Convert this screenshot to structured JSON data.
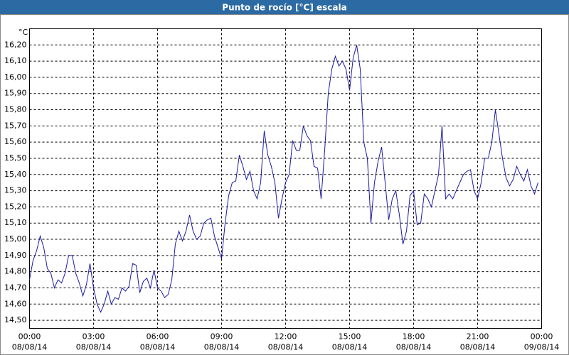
{
  "chart_data": {
    "type": "line",
    "title": "Punto de rocío [°C] escala",
    "y_unit": "°C",
    "x": [
      0,
      10,
      20,
      30,
      40,
      50,
      60,
      70,
      80,
      90,
      100,
      110,
      120,
      130,
      140,
      150,
      160,
      170,
      180,
      190,
      200,
      210,
      220,
      230,
      240,
      250,
      260,
      270,
      280,
      290,
      300,
      310,
      320,
      330,
      340,
      350,
      360,
      370,
      380,
      390,
      400,
      410,
      420,
      430,
      440,
      450,
      460,
      470,
      480,
      490,
      500,
      510,
      520,
      530,
      540,
      550,
      560,
      570,
      580,
      590,
      600,
      610,
      620,
      630,
      640,
      650,
      660,
      670,
      680,
      690,
      700,
      710,
      720,
      730,
      740,
      750,
      760,
      770,
      780,
      790,
      800,
      810,
      820,
      830,
      840,
      850,
      860,
      870,
      880,
      890,
      900,
      910,
      920,
      930,
      940,
      950,
      960,
      970,
      980,
      990,
      1000,
      1010,
      1020,
      1030,
      1040,
      1050,
      1060,
      1070,
      1080,
      1090,
      1100,
      1110,
      1120,
      1130,
      1140,
      1150,
      1160,
      1170,
      1180,
      1190,
      1200,
      1210,
      1220,
      1230,
      1240,
      1250,
      1260,
      1270,
      1280,
      1290,
      1300,
      1310,
      1320,
      1330,
      1340,
      1350,
      1360,
      1370,
      1380,
      1390,
      1400,
      1410,
      1420,
      1430
    ],
    "series": [
      {
        "name": "Punto de rocío",
        "color": "#1a1aa6",
        "values": [
          14.75,
          14.87,
          14.93,
          15.02,
          14.95,
          14.82,
          14.79,
          14.7,
          14.75,
          14.73,
          14.79,
          14.9,
          14.9,
          14.79,
          14.73,
          14.65,
          14.72,
          14.85,
          14.7,
          14.6,
          14.55,
          14.6,
          14.68,
          14.6,
          14.64,
          14.63,
          14.7,
          14.68,
          14.71,
          14.85,
          14.84,
          14.67,
          14.74,
          14.76,
          14.7,
          14.81,
          14.7,
          14.68,
          14.64,
          14.66,
          14.75,
          14.97,
          15.05,
          14.99,
          15.05,
          15.15,
          15.05,
          15.0,
          15.02,
          15.1,
          15.12,
          15.13,
          15.02,
          14.95,
          14.88,
          15.1,
          15.27,
          15.35,
          15.36,
          15.52,
          15.45,
          15.37,
          15.42,
          15.3,
          15.25,
          15.35,
          15.67,
          15.52,
          15.45,
          15.35,
          15.13,
          15.25,
          15.35,
          15.4,
          15.61,
          15.55,
          15.55,
          15.7,
          15.64,
          15.61,
          15.45,
          15.44,
          15.25,
          15.55,
          15.9,
          16.05,
          16.13,
          16.07,
          16.1,
          16.05,
          15.92,
          16.12,
          16.2,
          16.05,
          15.6,
          15.5,
          15.1,
          15.35,
          15.48,
          15.57,
          15.35,
          15.12,
          15.25,
          15.3,
          15.15,
          14.97,
          15.05,
          15.27,
          15.3,
          15.09,
          15.1,
          15.28,
          15.25,
          15.2,
          15.3,
          15.4,
          15.7,
          15.25,
          15.28,
          15.25,
          15.3,
          15.35,
          15.4,
          15.42,
          15.43,
          15.3,
          15.25,
          15.35,
          15.5,
          15.5,
          15.6,
          15.8,
          15.65,
          15.5,
          15.38,
          15.33,
          15.37,
          15.45,
          15.4,
          15.36,
          15.43,
          15.33,
          15.28,
          15.35
        ]
      }
    ],
    "xlim": [
      0,
      1440
    ],
    "xticks": [
      {
        "value": 0,
        "label": "00:00"
      },
      {
        "value": 180,
        "label": "03:00"
      },
      {
        "value": 360,
        "label": "06:00"
      },
      {
        "value": 540,
        "label": "09:00"
      },
      {
        "value": 720,
        "label": "12:00"
      },
      {
        "value": 900,
        "label": "15:00"
      },
      {
        "value": 1080,
        "label": "18:00"
      },
      {
        "value": 1260,
        "label": "21:00"
      },
      {
        "value": 1440,
        "label": "00:00"
      }
    ],
    "xtick_dates": [
      "08/08/14",
      "08/08/14",
      "08/08/14",
      "08/08/14",
      "08/08/14",
      "08/08/14",
      "08/08/14",
      "08/08/14",
      "09/08/14"
    ],
    "ylim": [
      14.45,
      16.3
    ],
    "yticks": [
      {
        "value": 14.5,
        "label": "14,50"
      },
      {
        "value": 14.6,
        "label": "14,60"
      },
      {
        "value": 14.7,
        "label": "14,70"
      },
      {
        "value": 14.8,
        "label": "14,80"
      },
      {
        "value": 14.9,
        "label": "14,90"
      },
      {
        "value": 15.0,
        "label": "15,00"
      },
      {
        "value": 15.1,
        "label": "15,10"
      },
      {
        "value": 15.2,
        "label": "15,20"
      },
      {
        "value": 15.3,
        "label": "15,30"
      },
      {
        "value": 15.4,
        "label": "15,40"
      },
      {
        "value": 15.5,
        "label": "15,50"
      },
      {
        "value": 15.6,
        "label": "15,60"
      },
      {
        "value": 15.7,
        "label": "15,70"
      },
      {
        "value": 15.8,
        "label": "15,80"
      },
      {
        "value": 15.9,
        "label": "15,90"
      },
      {
        "value": 16.0,
        "label": "16,00"
      },
      {
        "value": 16.1,
        "label": "16,10"
      },
      {
        "value": 16.2,
        "label": "16,20"
      }
    ],
    "grid": true
  }
}
